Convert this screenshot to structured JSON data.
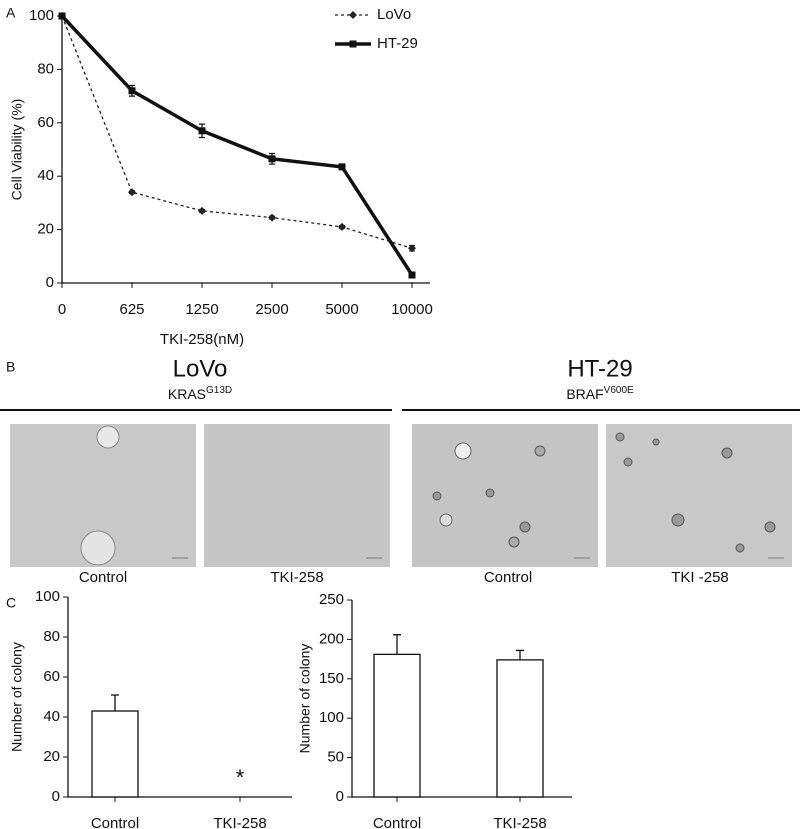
{
  "panels": {
    "labels": [
      "A",
      "B",
      "C"
    ]
  },
  "panel_b": {
    "groups": [
      {
        "title": "LoVo",
        "genotype": "KRAS",
        "mutation": "G13D"
      },
      {
        "title": "HT-29",
        "genotype": "BRAF",
        "mutation": "V600E"
      }
    ],
    "captions": [
      "Control",
      "TKI-258",
      "Control",
      "TKI -258"
    ]
  },
  "chart_data": [
    {
      "type": "line",
      "xlabel": "TKI-258(nM)",
      "ylabel": "Cell Viability (%)",
      "categories": [
        "0",
        "625",
        "1250",
        "2500",
        "5000",
        "10000"
      ],
      "series": [
        {
          "name": "LoVo",
          "color": "#222222",
          "line_style": "dashed",
          "marker": "diamond",
          "values": [
            100,
            34,
            27,
            24.5,
            21,
            13
          ],
          "errors": [
            0.5,
            0.5,
            0.5,
            0.5,
            0.5,
            1
          ]
        },
        {
          "name": "HT-29",
          "color": "#111111",
          "line_style": "solid",
          "marker": "square",
          "values": [
            100,
            72,
            57,
            46.5,
            43.5,
            3
          ],
          "errors": [
            0.5,
            2,
            2.5,
            2,
            1,
            1
          ]
        }
      ],
      "ylim": [
        0,
        100
      ],
      "yticks": [
        0,
        20,
        40,
        60,
        80,
        100
      ],
      "legend": "top-right"
    },
    {
      "type": "bar",
      "ylabel": "Number of colony",
      "categories": [
        "Control",
        "TKI-258"
      ],
      "values": [
        43,
        0
      ],
      "errors": [
        8,
        0
      ],
      "color": "#ffffff",
      "annotation": "*",
      "ylim": [
        0,
        100
      ],
      "yticks": [
        0,
        20,
        40,
        60,
        80,
        100
      ]
    },
    {
      "type": "bar",
      "ylabel": "Number of colony",
      "categories": [
        "Control",
        "TKI-258"
      ],
      "values": [
        181,
        174
      ],
      "errors": [
        25,
        12
      ],
      "color": "#ffffff",
      "ylim": [
        0,
        250
      ],
      "yticks": [
        0,
        50,
        100,
        150,
        200,
        250
      ]
    }
  ]
}
